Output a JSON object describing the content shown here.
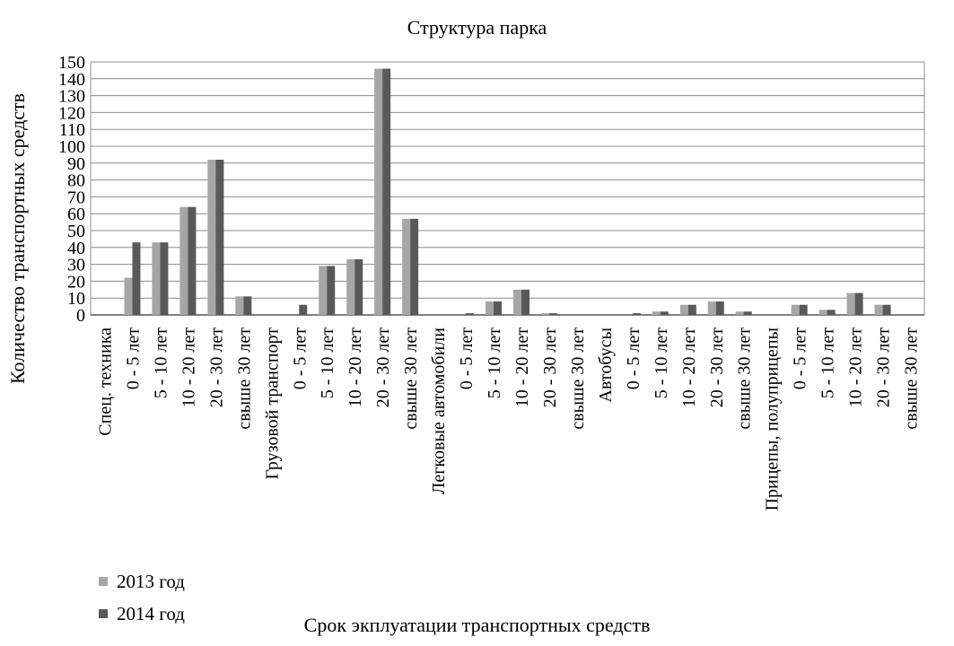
{
  "chart_data": {
    "type": "bar",
    "title": "Структура парка",
    "xlabel": "Срок экплуатации транспортных средств",
    "ylabel": "Количество транспортных средств",
    "ylim": [
      0,
      150
    ],
    "ytick_step": 10,
    "grid": true,
    "legend_position": "bottom-left",
    "categories": [
      "Спец. техника",
      "0 - 5 лет",
      "5 - 10 лет",
      "10 - 20 лет",
      "20 - 30 лет",
      "свыше 30 лет",
      "Грузовой транспорт",
      "0 - 5 лет",
      "5 - 10 лет",
      "10 - 20 лет",
      "20 - 30 лет",
      "свыше 30 лет",
      "Легковые автомобили",
      "0 - 5 лет",
      "5 - 10 лет",
      "10 - 20 лет",
      "20 - 30 лет",
      "свыше 30 лет",
      "Автобусы",
      "0 - 5 лет",
      "5 - 10 лет",
      "10 - 20 лет",
      "20 - 30 лет",
      "свыше 30 лет",
      "Прицепы, полуприцепы",
      "0 - 5 лет",
      "5 - 10 лет",
      "10 - 20 лет",
      "20 - 30 лет",
      "свыше 30 лет"
    ],
    "series": [
      {
        "name": "2013 год",
        "color": "#a6a6a6",
        "values": [
          0,
          22,
          43,
          64,
          92,
          11,
          0,
          0,
          29,
          33,
          146,
          57,
          0,
          0,
          8,
          15,
          1,
          0,
          0,
          0,
          2,
          6,
          8,
          2,
          0,
          6,
          3,
          13,
          6,
          0
        ]
      },
      {
        "name": "2014 год",
        "color": "#595959",
        "values": [
          0,
          43,
          43,
          64,
          92,
          11,
          0,
          6,
          29,
          33,
          146,
          57,
          0,
          1,
          8,
          15,
          1,
          0,
          0,
          1,
          2,
          6,
          8,
          2,
          0,
          6,
          3,
          13,
          6,
          0
        ]
      }
    ]
  }
}
